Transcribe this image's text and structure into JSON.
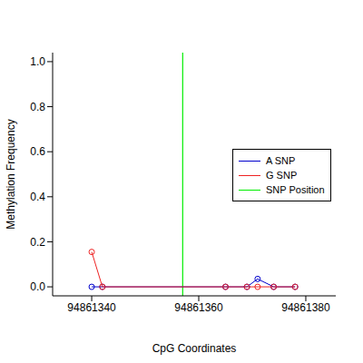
{
  "chart_data": {
    "type": "line",
    "x_label": "CpG Coordinates",
    "y_label": "Methylation Frequency",
    "xlim": [
      94861332.7,
      94861385.6
    ],
    "xticks": [
      94861340,
      94861360,
      94861380
    ],
    "ylim": [
      -0.04,
      1.04
    ],
    "yticks": [
      {
        "value": 0,
        "label": "0.0"
      },
      {
        "value": 0.2,
        "label": "0.2"
      },
      {
        "value": 0.4,
        "label": "0.4"
      },
      {
        "value": 0.6,
        "label": "0.6"
      },
      {
        "value": 0.8,
        "label": "0.8"
      },
      {
        "value": 1,
        "label": "1.0"
      }
    ],
    "marker": "open_circle",
    "legend": "right",
    "series": [
      {
        "name": "A SNP",
        "color": "#0000cc",
        "x": [
          94861340,
          94861342,
          94861365,
          94861369,
          94861371,
          94861374,
          94861378
        ],
        "values": [
          0,
          0,
          0,
          0,
          0.035,
          0,
          0
        ]
      },
      {
        "name": "G SNP",
        "color": "#ee2222",
        "x": [
          94861340,
          94861342,
          94861365,
          94861369,
          94861371,
          94861374,
          94861378
        ],
        "values": [
          0.155,
          0,
          0,
          0,
          0,
          0,
          0
        ]
      }
    ],
    "snp_position": {
      "name": "SNP Position",
      "color": "#00ee00",
      "x": 94861357
    }
  }
}
